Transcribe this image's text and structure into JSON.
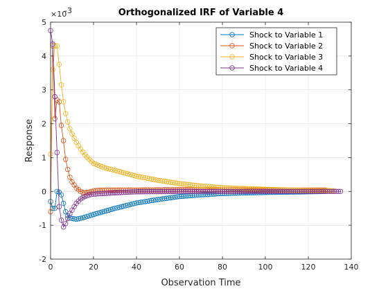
{
  "chart_data": {
    "type": "line",
    "title": "Orthogonalized IRF of Variable 4",
    "xlabel": "Observation Time",
    "ylabel": "Response",
    "y_multiplier": "×10",
    "y_exponent": "-3",
    "xlim": [
      0,
      140
    ],
    "ylim": [
      -2,
      5
    ],
    "xticks": [
      0,
      20,
      40,
      60,
      80,
      100,
      120,
      140
    ],
    "yticks": [
      -2,
      -1,
      0,
      1,
      2,
      3,
      4,
      5
    ],
    "grid": true,
    "legend_position": "top-right",
    "marker": "circle",
    "series": [
      {
        "name": "Shock to Variable 1",
        "color": "#0072BD",
        "x_start": 0,
        "x_end": 128,
        "anchors": [
          [
            0,
            -0.3
          ],
          [
            1,
            -0.5
          ],
          [
            2,
            -0.5
          ],
          [
            3,
            0
          ],
          [
            4,
            -0.02
          ],
          [
            5,
            -0.1
          ],
          [
            6,
            -0.35
          ],
          [
            7,
            -0.6
          ],
          [
            8,
            -0.72
          ],
          [
            9,
            -0.78
          ],
          [
            10,
            -0.8
          ],
          [
            12,
            -0.82
          ],
          [
            15,
            -0.78
          ],
          [
            20,
            -0.68
          ],
          [
            30,
            -0.5
          ],
          [
            40,
            -0.34
          ],
          [
            50,
            -0.24
          ],
          [
            60,
            -0.15
          ],
          [
            70,
            -0.1
          ],
          [
            80,
            -0.06
          ],
          [
            100,
            -0.03
          ],
          [
            120,
            -0.01
          ],
          [
            128,
            0
          ]
        ]
      },
      {
        "name": "Shock to Variable 2",
        "color": "#D95319",
        "x_start": 0,
        "x_end": 128,
        "anchors": [
          [
            0,
            -0.6
          ],
          [
            1,
            4.3
          ],
          [
            2,
            2.15
          ],
          [
            3,
            2.7
          ],
          [
            4,
            2.65
          ],
          [
            5,
            1.95
          ],
          [
            6,
            1.5
          ],
          [
            7,
            0.95
          ],
          [
            8,
            0.65
          ],
          [
            9,
            0.42
          ],
          [
            10,
            0.28
          ],
          [
            12,
            0.1
          ],
          [
            14,
            0.0
          ],
          [
            15,
            -0.03
          ],
          [
            16,
            -0.04
          ],
          [
            18,
            -0.02
          ],
          [
            20,
            0.02
          ],
          [
            25,
            0.04
          ],
          [
            30,
            0.04
          ],
          [
            40,
            0.04
          ],
          [
            60,
            0.05
          ],
          [
            80,
            0.05
          ],
          [
            100,
            0.04
          ],
          [
            128,
            0.04
          ]
        ]
      },
      {
        "name": "Shock to Variable 3",
        "color": "#EDB120",
        "x_start": 0,
        "x_end": 132,
        "anchors": [
          [
            0,
            1.1
          ],
          [
            1,
            3.6
          ],
          [
            2,
            4.3
          ],
          [
            3,
            4.3
          ],
          [
            4,
            3.75
          ],
          [
            5,
            3.15
          ],
          [
            6,
            2.65
          ],
          [
            7,
            2.3
          ],
          [
            8,
            2.05
          ],
          [
            9,
            1.85
          ],
          [
            10,
            1.7
          ],
          [
            12,
            1.45
          ],
          [
            14,
            1.25
          ],
          [
            16,
            1.08
          ],
          [
            18,
            0.95
          ],
          [
            20,
            0.83
          ],
          [
            25,
            0.7
          ],
          [
            30,
            0.62
          ],
          [
            40,
            0.45
          ],
          [
            50,
            0.33
          ],
          [
            60,
            0.23
          ],
          [
            70,
            0.16
          ],
          [
            80,
            0.11
          ],
          [
            100,
            0.06
          ],
          [
            120,
            0.03
          ],
          [
            132,
            0.02
          ]
        ]
      },
      {
        "name": "Shock to Variable 4",
        "color": "#7E2F8E",
        "x_start": 0,
        "x_end": 135,
        "anchors": [
          [
            0,
            4.75
          ],
          [
            1,
            4.35
          ],
          [
            2,
            2.8
          ],
          [
            3,
            1.15
          ],
          [
            4,
            -0.45
          ],
          [
            5,
            -0.85
          ],
          [
            6,
            -1.05
          ],
          [
            7,
            -0.95
          ],
          [
            8,
            -0.8
          ],
          [
            9,
            -0.65
          ],
          [
            10,
            -0.55
          ],
          [
            12,
            -0.35
          ],
          [
            14,
            -0.22
          ],
          [
            16,
            -0.15
          ],
          [
            18,
            -0.1
          ],
          [
            20,
            -0.08
          ],
          [
            30,
            -0.04
          ],
          [
            40,
            -0.01
          ],
          [
            60,
            0.0
          ],
          [
            80,
            0.0
          ],
          [
            100,
            0.0
          ],
          [
            135,
            0.0
          ]
        ]
      }
    ]
  }
}
